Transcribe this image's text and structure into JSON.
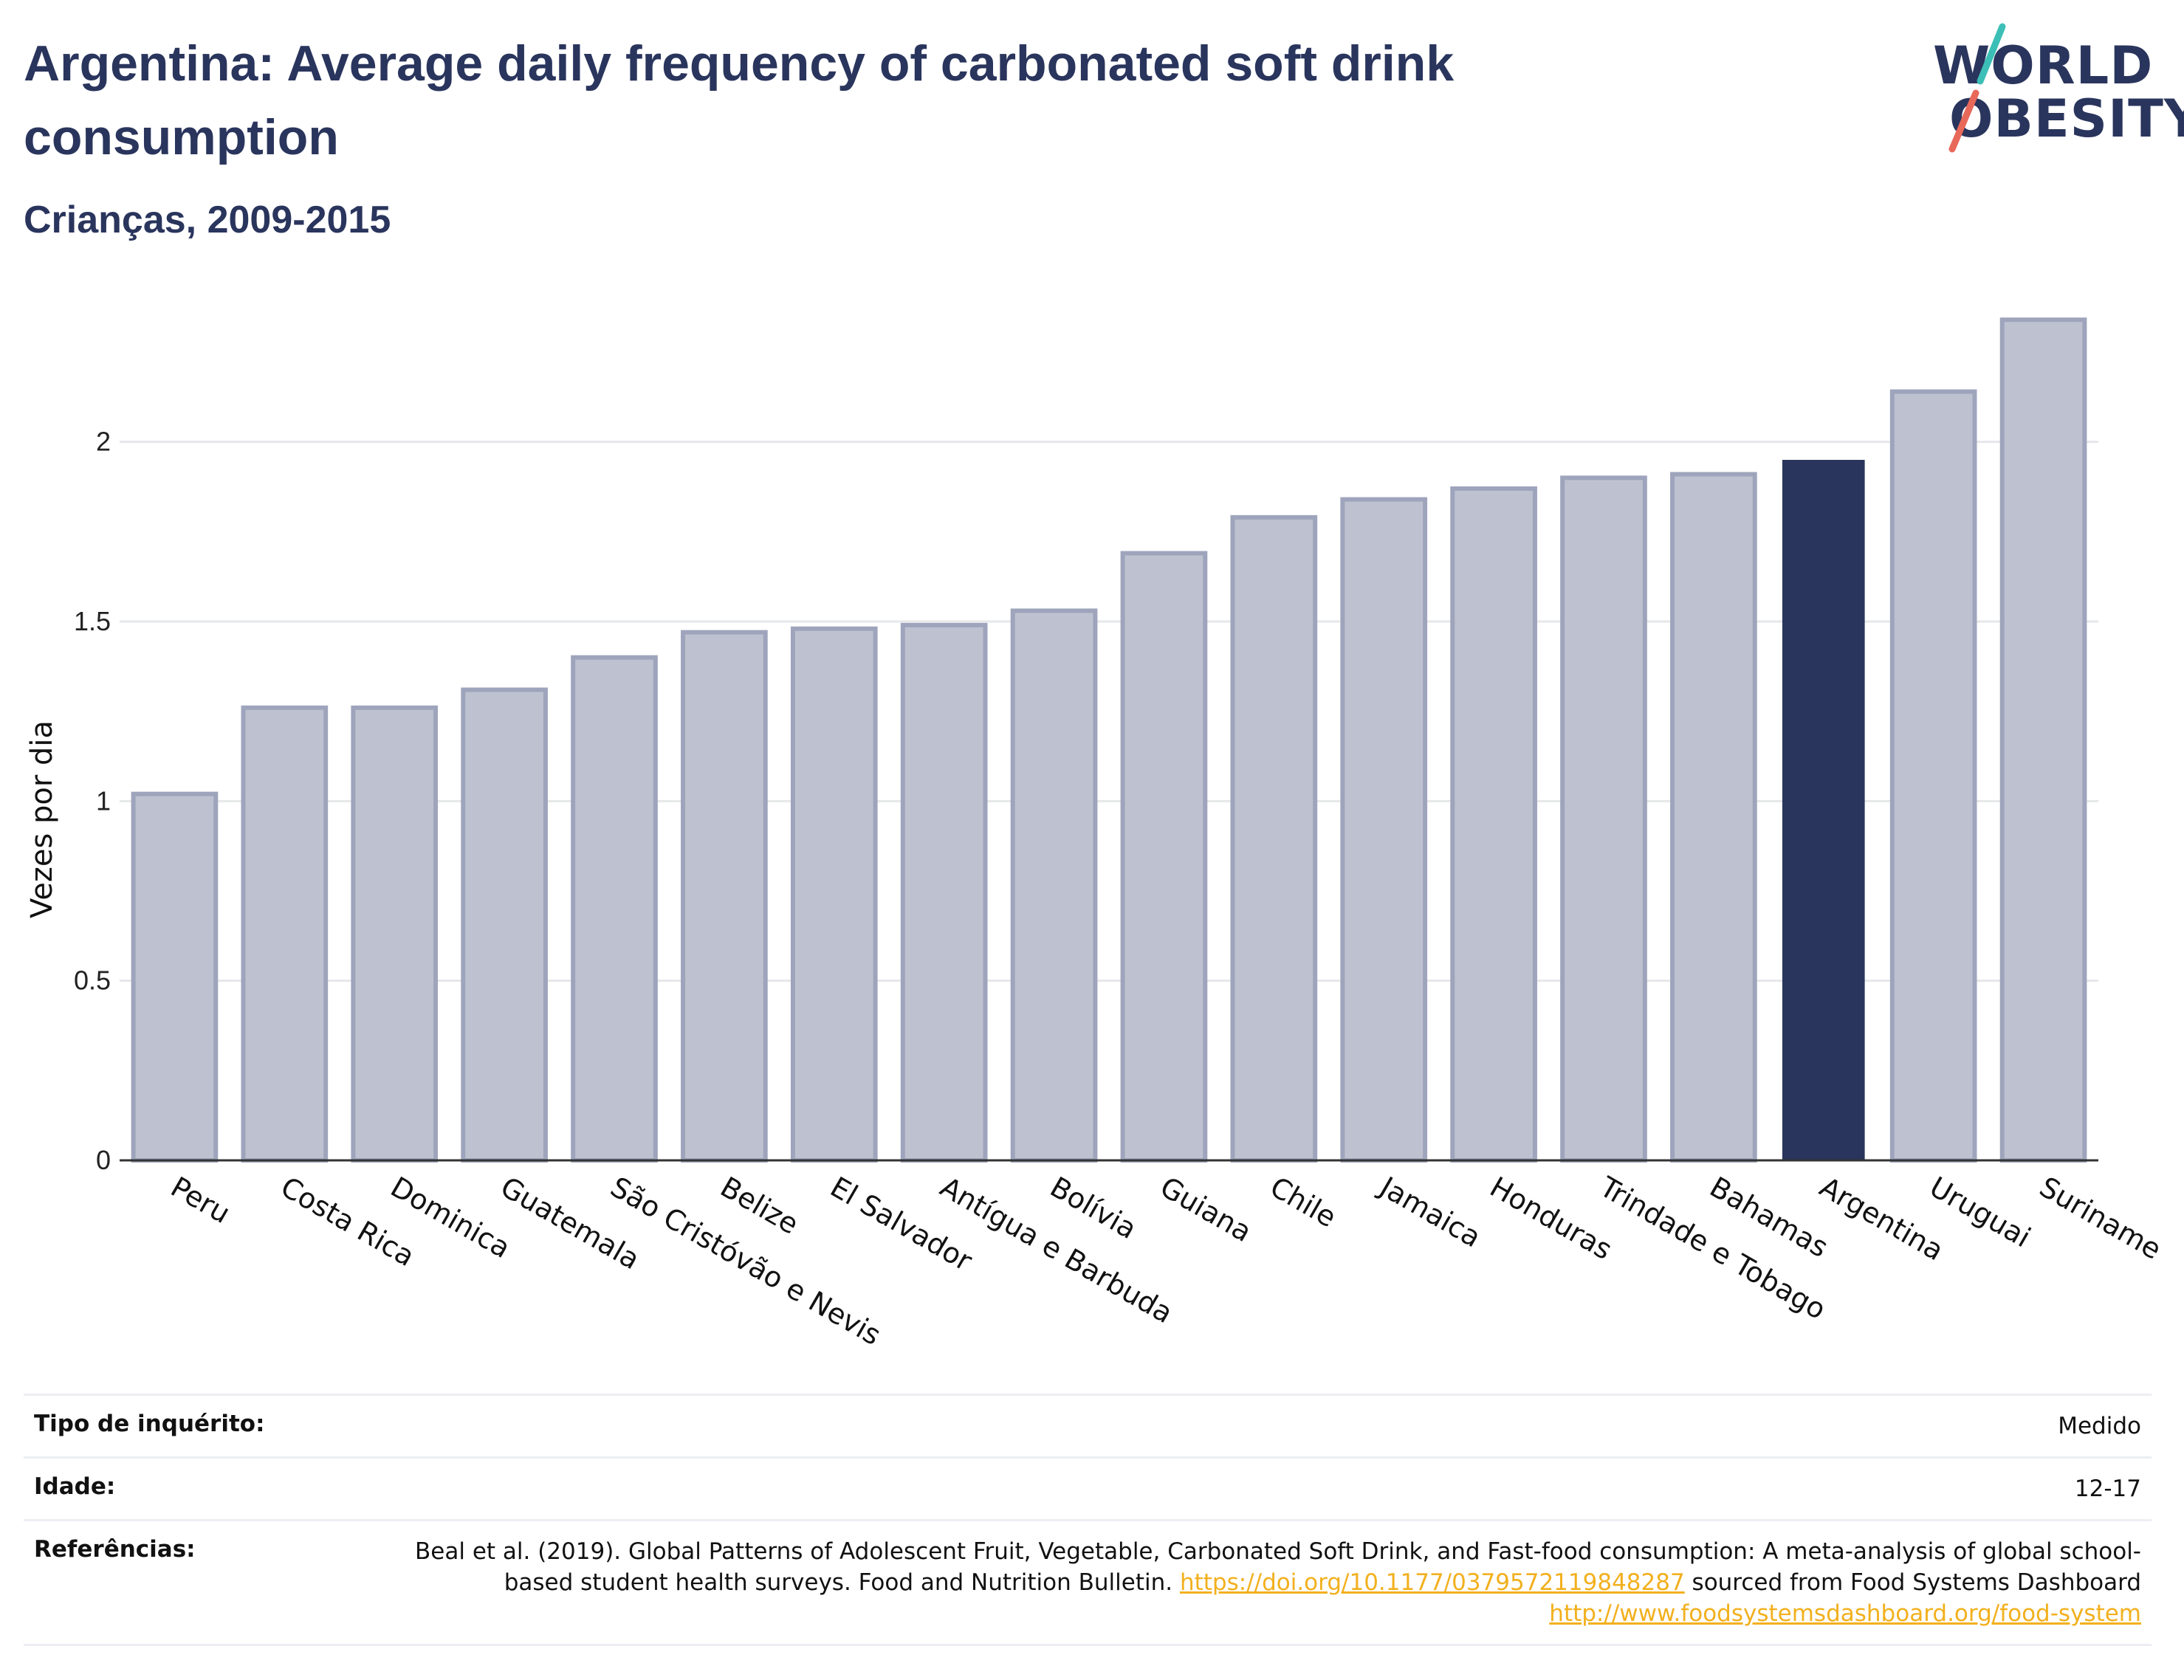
{
  "header": {
    "title": "Argentina: Average daily frequency of carbonated soft drink consumption",
    "subtitle": "Crianças, 2009-2015"
  },
  "logo": {
    "line1": "WORLD",
    "line2": "OBESITY",
    "colors": {
      "text": "#2a355d",
      "slash_top": "#3bbfb6",
      "slash_bottom": "#e8685a"
    }
  },
  "chart_data": {
    "type": "bar",
    "title": "Argentina: Average daily frequency of carbonated soft drink consumption",
    "subtitle": "Crianças, 2009-2015",
    "xlabel": "",
    "ylabel": "Vezes por dia",
    "ylim": [
      0,
      2.4
    ],
    "yticks": [
      0,
      0.5,
      1,
      1.5,
      2
    ],
    "ytick_labels": [
      "0",
      "0.5",
      "1",
      "1.5",
      "2"
    ],
    "grid": true,
    "highlight": "Argentina",
    "colors": {
      "default": "#bec2d0",
      "default_border": "#9ea4bb",
      "highlight": "#2a355d"
    },
    "categories": [
      "Peru",
      "Costa Rica",
      "Dominica",
      "Guatemala",
      "São Cristóvão e Nevis",
      "Belize",
      "El Salvador",
      "Antígua e Barbuda",
      "Bolívia",
      "Guiana",
      "Chile",
      "Jamaica",
      "Honduras",
      "Trindade e Tobago",
      "Bahamas",
      "Argentina",
      "Uruguai",
      "Suriname"
    ],
    "values": [
      1.02,
      1.26,
      1.26,
      1.31,
      1.4,
      1.47,
      1.48,
      1.49,
      1.53,
      1.69,
      1.79,
      1.84,
      1.87,
      1.9,
      1.91,
      1.95,
      2.14,
      2.34
    ]
  },
  "table": {
    "rows": [
      {
        "label": "Tipo de inquérito:",
        "value": "Medido"
      },
      {
        "label": "Idade:",
        "value": "12-17"
      }
    ],
    "references": {
      "label": "Referências:",
      "text1": "Beal et al. (2019). Global Patterns of Adolescent Fruit, Vegetable, Carbonated Soft Drink, and Fast-food consumption: A meta-analysis of global school-based student health surveys. Food and Nutrition Bulletin. ",
      "link1": "https://doi.org/10.1177/0379572119848287",
      "text2": " sourced from Food Systems Dashboard ",
      "link2": "http://www.foodsystemsdashboard.org/food-system"
    }
  }
}
